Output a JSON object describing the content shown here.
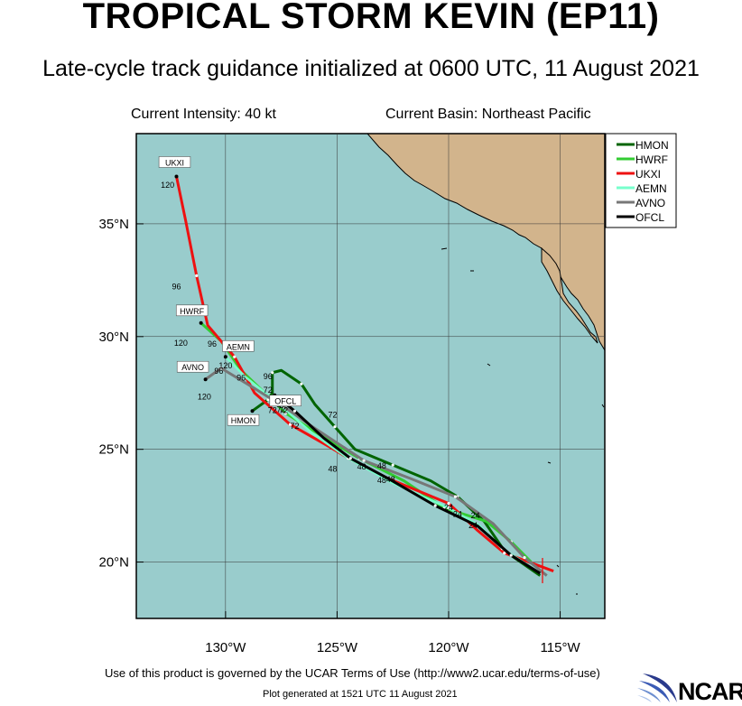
{
  "title": "TROPICAL STORM KEVIN (EP11)",
  "subtitle": "Late-cycle track guidance initialized at 0600 UTC, 11 August 2021",
  "current_intensity": "Current Intensity: 40 kt",
  "current_basin": "Current Basin: Northeast Pacific",
  "footer_terms": "Use of this product is governed by the UCAR Terms of Use (http://www2.ucar.edu/terms-of-use)",
  "footer_generated": "Plot generated at 1521 UTC   11 August 2021",
  "logo_text": "NCAR",
  "colors": {
    "ocean": "#99cccc",
    "land": "#d2b48c",
    "HMON": "#006400",
    "HWRF": "#33cc33",
    "UKXI": "#ee1111",
    "AEMN": "#77ffcc",
    "AVNO": "#777777",
    "OFCL": "#000000"
  },
  "chart_data": {
    "type": "map",
    "map_extent": {
      "lon": [
        -134,
        -113
      ],
      "lat": [
        17.5,
        39
      ]
    },
    "x_ticks": [
      {
        "value": -130,
        "label": "130°W"
      },
      {
        "value": -125,
        "label": "125°W"
      },
      {
        "value": -120,
        "label": "120°W"
      },
      {
        "value": -115,
        "label": "115°W"
      }
    ],
    "y_ticks": [
      {
        "value": 20,
        "label": "20°N"
      },
      {
        "value": 25,
        "label": "25°N"
      },
      {
        "value": 30,
        "label": "30°N"
      },
      {
        "value": 35,
        "label": "35°N"
      }
    ],
    "legend_position": "top-right",
    "series": [
      {
        "name": "HMON",
        "color": "#006400",
        "track": [
          [
            -115.9,
            19.4
          ],
          [
            -117.5,
            20.5
          ],
          [
            -118.4,
            21.8
          ],
          [
            -119.6,
            22.9
          ],
          [
            -120.8,
            23.6
          ],
          [
            -122.5,
            24.3
          ],
          [
            -124.2,
            25.0
          ],
          [
            -125.1,
            26.0
          ],
          [
            -126,
            27.0
          ],
          [
            -126.6,
            27.9
          ],
          [
            -127.5,
            28.5
          ],
          [
            -127.9,
            28.4
          ],
          [
            -127.9,
            27.5
          ],
          [
            -128.1,
            27.2
          ],
          [
            -128.8,
            26.7
          ]
        ],
        "end_label": "HMON",
        "hour_labels": [
          {
            "t": "24",
            "lon": -118.8,
            "lat": 21.95
          },
          {
            "t": "48",
            "lon": -122.6,
            "lat": 23.55
          },
          {
            "t": "72",
            "lon": -125.2,
            "lat": 26.4
          },
          {
            "t": "96",
            "lon": -128.1,
            "lat": 28.1
          }
        ]
      },
      {
        "name": "HWRF",
        "color": "#33cc33",
        "track": [
          [
            -116.3,
            20.0
          ],
          [
            -117.2,
            20.9
          ],
          [
            -118.3,
            21.8
          ],
          [
            -120.2,
            22.4
          ],
          [
            -122.0,
            23.6
          ],
          [
            -124.0,
            24.6
          ],
          [
            -125.7,
            25.6
          ],
          [
            -127.3,
            26.6
          ],
          [
            -129.3,
            28.5
          ],
          [
            -130.2,
            29.8
          ],
          [
            -131.1,
            30.6
          ]
        ],
        "end_label": "HWRF",
        "hour_labels": [
          {
            "t": "120",
            "lon": -132.0,
            "lat": 29.6
          },
          {
            "t": "96",
            "lon": -130.6,
            "lat": 29.55
          },
          {
            "t": "72",
            "lon": -127.5,
            "lat": 26.65
          }
        ]
      },
      {
        "name": "UKXI",
        "color": "#ee1111",
        "track": [
          [
            -115.3,
            19.6
          ],
          [
            -117.5,
            20.4
          ],
          [
            -118.7,
            21.4
          ],
          [
            -120.0,
            22.6
          ],
          [
            -122.7,
            23.7
          ],
          [
            -124.3,
            24.5
          ],
          [
            -125.5,
            25.2
          ],
          [
            -127.1,
            26.1
          ],
          [
            -128.7,
            27.5
          ],
          [
            -129.6,
            29.1
          ],
          [
            -130.8,
            30.5
          ],
          [
            -131.3,
            32.7
          ],
          [
            -131.8,
            35.2
          ],
          [
            -132.2,
            37.1
          ]
        ],
        "end_label": "UKXI",
        "hour_labels": [
          {
            "t": "120",
            "lon": -132.6,
            "lat": 36.6
          },
          {
            "t": "96",
            "lon": -132.2,
            "lat": 32.1
          },
          {
            "t": "72",
            "lon": -126.9,
            "lat": 25.9
          },
          {
            "t": "48",
            "lon": -125.2,
            "lat": 24.0
          },
          {
            "t": "24",
            "lon": -120.0,
            "lat": 22.3
          }
        ]
      },
      {
        "name": "AEMN",
        "color": "#77ffcc",
        "track": [
          [
            -116.2,
            19.7
          ],
          [
            -117.6,
            20.6
          ],
          [
            -118.6,
            21.6
          ],
          [
            -120.0,
            22.4
          ],
          [
            -122.5,
            23.5
          ],
          [
            -124.5,
            24.6
          ],
          [
            -126.1,
            25.7
          ],
          [
            -127.6,
            27.0
          ],
          [
            -129.1,
            28.2
          ],
          [
            -130.0,
            29.1
          ]
        ],
        "end_label": "AEMN",
        "hour_labels": [
          {
            "t": "120",
            "lon": -130.0,
            "lat": 28.6
          },
          {
            "t": "96",
            "lon": -129.3,
            "lat": 28.05
          },
          {
            "t": "72",
            "lon": -127.4,
            "lat": 26.6
          },
          {
            "t": "48",
            "lon": -123.9,
            "lat": 24.1
          }
        ]
      },
      {
        "name": "AVNO",
        "color": "#777777",
        "track": [
          [
            -115.6,
            19.4
          ],
          [
            -116.6,
            20.2
          ],
          [
            -118.0,
            21.7
          ],
          [
            -119.7,
            22.9
          ],
          [
            -121.7,
            23.7
          ],
          [
            -123.8,
            24.5
          ],
          [
            -126.1,
            26.0
          ],
          [
            -127.4,
            26.9
          ],
          [
            -128.7,
            27.7
          ],
          [
            -130.2,
            28.6
          ],
          [
            -130.9,
            28.1
          ]
        ],
        "end_label": "AVNO",
        "hour_labels": [
          {
            "t": "120",
            "lon": -130.95,
            "lat": 27.2
          },
          {
            "t": "96",
            "lon": -130.3,
            "lat": 28.35
          },
          {
            "t": "72",
            "lon": -128.1,
            "lat": 27.5
          },
          {
            "t": "48",
            "lon": -123.0,
            "lat": 24.15
          },
          {
            "t": "24",
            "lon": -119.6,
            "lat": 22.0
          }
        ]
      },
      {
        "name": "OFCL",
        "color": "#000000",
        "track": [
          [
            -115.9,
            19.5
          ],
          [
            -117.2,
            20.3
          ],
          [
            -118.7,
            21.6
          ],
          [
            -120.6,
            22.5
          ],
          [
            -122.7,
            23.7
          ],
          [
            -124.4,
            24.6
          ],
          [
            -125.6,
            25.5
          ],
          [
            -126.9,
            26.7
          ],
          [
            -127.8,
            27.4
          ]
        ],
        "end_label": "OFCL",
        "hour_labels": [
          {
            "t": "24",
            "lon": -118.9,
            "lat": 21.5
          },
          {
            "t": "48",
            "lon": -123.0,
            "lat": 23.5
          },
          {
            "t": "72",
            "lon": -127.9,
            "lat": 26.6
          }
        ]
      }
    ]
  }
}
